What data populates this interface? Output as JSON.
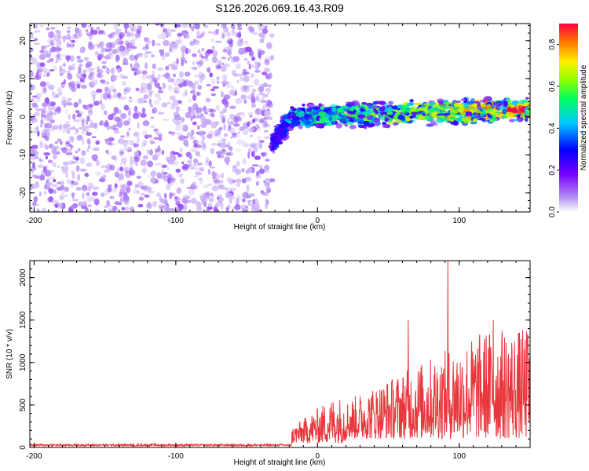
{
  "title": "S126.2026.069.16.43.R09",
  "chart_data": [
    {
      "type": "heatmap",
      "xlabel": "Height of straight line (km)",
      "ylabel": "Frequency (Hz)",
      "xlim": [
        -203,
        150
      ],
      "ylim": [
        -25,
        24.5
      ],
      "x_ticks": [
        -200,
        -100,
        0,
        100
      ],
      "y_ticks": [
        -20,
        -10,
        0,
        10,
        20
      ],
      "colorbar": {
        "label": "Normalized spectral amplitude",
        "range": [
          0.0,
          0.9
        ],
        "ticks": [
          0.0,
          0.2,
          0.4,
          0.6,
          0.8
        ],
        "colormap": [
          "#ffffff",
          "#b08cf0",
          "#7a00ff",
          "#0000ff",
          "#00c8ff",
          "#00ff60",
          "#90ff00",
          "#ffee00",
          "#ff7a00",
          "#ff0040"
        ]
      },
      "regions": [
        {
          "name": "noise",
          "x_range": [
            -203,
            -32
          ],
          "freq_range": [
            -25,
            24.5
          ],
          "amplitude": [
            0.05,
            0.15
          ]
        },
        {
          "name": "signal-ramp",
          "x_range": [
            -32,
            -18
          ],
          "center_freq": [
            -7,
            0
          ],
          "amplitude": [
            0.2,
            0.45
          ]
        },
        {
          "name": "signal-band",
          "x_range": [
            -18,
            150
          ],
          "center_freq": [
            0,
            2
          ],
          "amplitude": [
            0.2,
            0.9
          ],
          "peak_x": 140,
          "peak_amplitude": 0.9
        }
      ]
    },
    {
      "type": "line",
      "xlabel": "Height of straight line (km)",
      "ylabel": "SNR (10 * v/v)",
      "xlim": [
        -203,
        150
      ],
      "ylim": [
        0,
        2200
      ],
      "x_ticks": [
        -200,
        -100,
        0,
        100
      ],
      "y_ticks": [
        0,
        500,
        1000,
        1500,
        2000
      ],
      "color": "#e8383d",
      "segments": [
        {
          "x_range": [
            -203,
            -18
          ],
          "level": [
            15,
            40
          ]
        },
        {
          "x_range": [
            -18,
            20
          ],
          "level": [
            100,
            550
          ]
        },
        {
          "x_range": [
            20,
            150
          ],
          "level": [
            200,
            1300
          ]
        }
      ],
      "peaks": [
        {
          "x": 92,
          "y": 2200
        },
        {
          "x": 64,
          "y": 1500
        },
        {
          "x": 124,
          "y": 1500
        },
        {
          "x": 148,
          "y": 1250
        }
      ]
    }
  ]
}
